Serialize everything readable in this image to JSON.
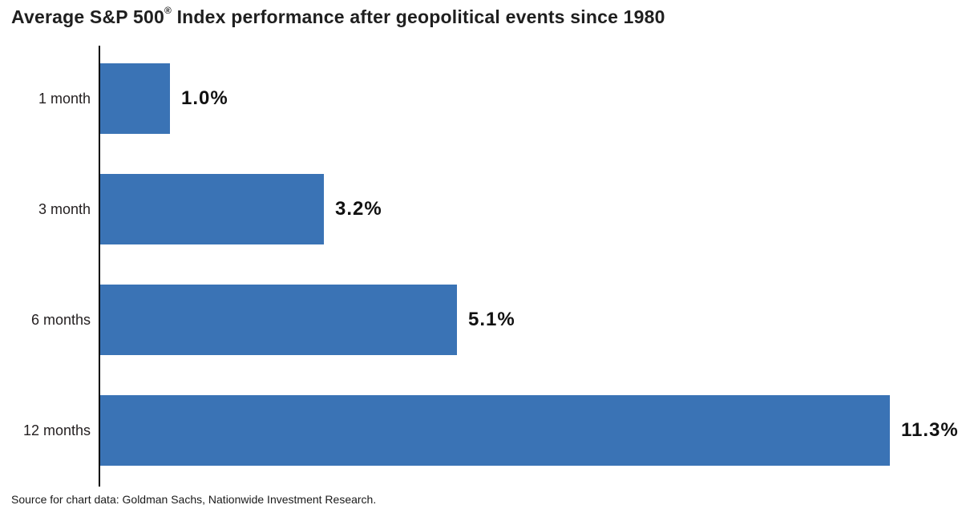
{
  "chart_data": {
    "type": "bar",
    "orientation": "horizontal",
    "title": "Average S&P 500® Index performance after geopolitical events since 1980",
    "title_parts": {
      "pre": "Average S&P 500",
      "sup": "®",
      "post": " Index performance after geopolitical events since 1980"
    },
    "categories": [
      "1 month",
      "3 month",
      "6 months",
      "12 months"
    ],
    "values": [
      1.0,
      3.2,
      5.1,
      11.3
    ],
    "value_labels": [
      "1.0%",
      "3.2%",
      "5.1%",
      "11.3%"
    ],
    "xlabel": "",
    "ylabel": "",
    "xlim": [
      0,
      12.2
    ],
    "grid": false,
    "legend": "none",
    "bar_color": "#3A73B5",
    "axis_color": "#000000",
    "text_color": "#1A1A1A"
  },
  "source_note": "Source for chart data: Goldman Sachs, Nationwide Investment Research."
}
